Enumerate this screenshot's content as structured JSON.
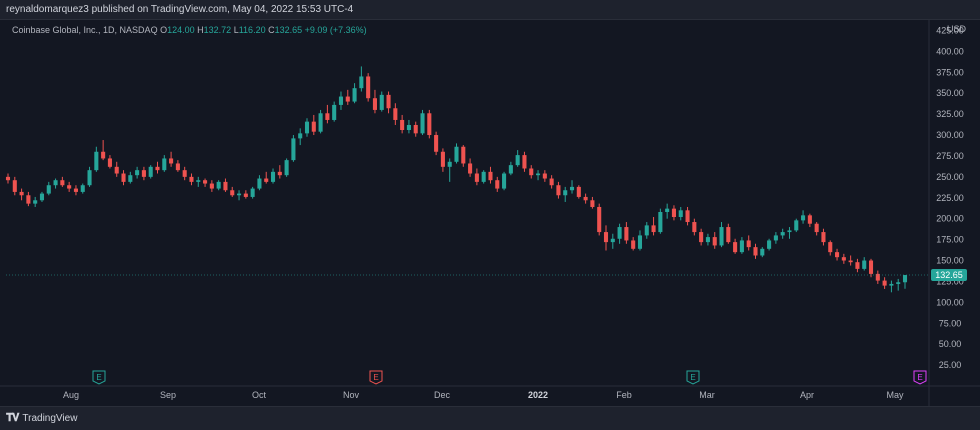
{
  "publish_line": "reynaldomarquez3 published on TradingView.com, May 04, 2022 15:53 UTC-4",
  "legend": {
    "symbol": "Coinbase Global, Inc., 1D, NASDAQ",
    "o_label": "O",
    "o_value": "124.00",
    "h_label": "H",
    "h_value": "132.72",
    "l_label": "L",
    "l_value": "116.20",
    "c_label": "C",
    "c_value": "132.65",
    "change": "+9.09 (+7.36%)"
  },
  "currency": "USD",
  "current_price_label": "132.65",
  "brand": "TradingView",
  "colors": {
    "background": "#131722",
    "up": "#26a69a",
    "down": "#ef5350",
    "earnings_green": "#26a69a",
    "earnings_red": "#ef5350",
    "earnings_purple": "#e040fb",
    "price_tag": "#26a69a"
  },
  "chart_data": {
    "type": "candlestick",
    "ylim": [
      0,
      437.5
    ],
    "yticks": [
      25,
      50,
      75,
      100,
      125,
      150,
      175,
      200,
      225,
      250,
      275,
      300,
      325,
      350,
      375,
      400,
      425
    ],
    "ytick_labels": [
      "25.00",
      "50.00",
      "75.00",
      "100.00",
      "125.00",
      "150.00",
      "175.00",
      "200.00",
      "225.00",
      "250.00",
      "275.00",
      "300.00",
      "325.00",
      "350.00",
      "375.00",
      "400.00",
      "425.00"
    ],
    "xtick_labels": [
      "Aug",
      "Sep",
      "Oct",
      "Nov",
      "Dec",
      "2022",
      "Feb",
      "Mar",
      "Apr",
      "May"
    ],
    "bold_xtick": "2022",
    "earnings_markers": [
      {
        "label": "E",
        "color": "green",
        "at": "Aug 10"
      },
      {
        "label": "E",
        "color": "red",
        "at": "Nov 9"
      },
      {
        "label": "E",
        "color": "green",
        "at": "Feb 24"
      },
      {
        "label": "E",
        "color": "purple",
        "at": "May 10"
      }
    ],
    "candles": [
      [
        250,
        254,
        242,
        246
      ],
      [
        246,
        250,
        228,
        232
      ],
      [
        232,
        236,
        222,
        228
      ],
      [
        228,
        232,
        215,
        218
      ],
      [
        218,
        226,
        214,
        222
      ],
      [
        222,
        232,
        220,
        230
      ],
      [
        230,
        244,
        228,
        240
      ],
      [
        240,
        248,
        236,
        246
      ],
      [
        246,
        250,
        238,
        240
      ],
      [
        240,
        244,
        232,
        236
      ],
      [
        236,
        240,
        228,
        232
      ],
      [
        232,
        242,
        230,
        240
      ],
      [
        240,
        262,
        238,
        258
      ],
      [
        258,
        286,
        256,
        280
      ],
      [
        280,
        294,
        270,
        272
      ],
      [
        272,
        276,
        260,
        262
      ],
      [
        262,
        268,
        250,
        254
      ],
      [
        254,
        258,
        240,
        244
      ],
      [
        244,
        256,
        242,
        252
      ],
      [
        252,
        262,
        248,
        258
      ],
      [
        258,
        262,
        246,
        250
      ],
      [
        250,
        264,
        248,
        262
      ],
      [
        262,
        268,
        254,
        258
      ],
      [
        258,
        276,
        256,
        272
      ],
      [
        272,
        280,
        262,
        266
      ],
      [
        266,
        270,
        256,
        258
      ],
      [
        258,
        262,
        246,
        250
      ],
      [
        250,
        254,
        240,
        244
      ],
      [
        244,
        250,
        238,
        246
      ],
      [
        246,
        248,
        238,
        242
      ],
      [
        242,
        246,
        232,
        236
      ],
      [
        236,
        246,
        234,
        244
      ],
      [
        244,
        248,
        232,
        234
      ],
      [
        234,
        238,
        226,
        228
      ],
      [
        228,
        234,
        222,
        230
      ],
      [
        230,
        234,
        224,
        226
      ],
      [
        226,
        238,
        224,
        236
      ],
      [
        236,
        252,
        234,
        248
      ],
      [
        248,
        256,
        242,
        244
      ],
      [
        244,
        260,
        242,
        256
      ],
      [
        256,
        264,
        248,
        252
      ],
      [
        252,
        272,
        250,
        270
      ],
      [
        270,
        300,
        268,
        296
      ],
      [
        296,
        308,
        288,
        302
      ],
      [
        302,
        320,
        298,
        316
      ],
      [
        316,
        324,
        300,
        304
      ],
      [
        304,
        330,
        302,
        326
      ],
      [
        326,
        336,
        314,
        318
      ],
      [
        318,
        340,
        316,
        336
      ],
      [
        336,
        352,
        330,
        346
      ],
      [
        346,
        354,
        336,
        340
      ],
      [
        340,
        362,
        338,
        356
      ],
      [
        356,
        382,
        352,
        370
      ],
      [
        370,
        374,
        340,
        344
      ],
      [
        344,
        354,
        326,
        330
      ],
      [
        330,
        352,
        328,
        348
      ],
      [
        348,
        352,
        326,
        332
      ],
      [
        332,
        338,
        312,
        318
      ],
      [
        318,
        324,
        302,
        306
      ],
      [
        306,
        318,
        302,
        312
      ],
      [
        312,
        316,
        298,
        302
      ],
      [
        302,
        330,
        300,
        326
      ],
      [
        326,
        330,
        296,
        300
      ],
      [
        300,
        304,
        276,
        280
      ],
      [
        280,
        284,
        256,
        262
      ],
      [
        262,
        272,
        244,
        268
      ],
      [
        268,
        290,
        266,
        286
      ],
      [
        286,
        288,
        262,
        266
      ],
      [
        266,
        272,
        250,
        254
      ],
      [
        254,
        260,
        240,
        244
      ],
      [
        244,
        258,
        242,
        256
      ],
      [
        256,
        262,
        242,
        246
      ],
      [
        246,
        250,
        232,
        236
      ],
      [
        236,
        256,
        234,
        254
      ],
      [
        254,
        268,
        252,
        264
      ],
      [
        264,
        282,
        262,
        276
      ],
      [
        276,
        280,
        256,
        260
      ],
      [
        260,
        264,
        248,
        252
      ],
      [
        252,
        258,
        246,
        254
      ],
      [
        254,
        258,
        244,
        248
      ],
      [
        248,
        252,
        236,
        240
      ],
      [
        240,
        244,
        224,
        228
      ],
      [
        228,
        238,
        220,
        234
      ],
      [
        234,
        246,
        230,
        238
      ],
      [
        238,
        240,
        224,
        226
      ],
      [
        226,
        230,
        218,
        222
      ],
      [
        222,
        226,
        212,
        214
      ],
      [
        214,
        218,
        180,
        184
      ],
      [
        184,
        192,
        162,
        172
      ],
      [
        172,
        182,
        164,
        176
      ],
      [
        176,
        194,
        170,
        190
      ],
      [
        190,
        196,
        170,
        174
      ],
      [
        174,
        178,
        162,
        164
      ],
      [
        164,
        186,
        162,
        180
      ],
      [
        180,
        196,
        176,
        192
      ],
      [
        192,
        202,
        180,
        184
      ],
      [
        184,
        212,
        182,
        208
      ],
      [
        208,
        218,
        200,
        212
      ],
      [
        212,
        216,
        198,
        202
      ],
      [
        202,
        214,
        198,
        210
      ],
      [
        210,
        214,
        192,
        196
      ],
      [
        196,
        200,
        180,
        184
      ],
      [
        184,
        188,
        168,
        172
      ],
      [
        172,
        182,
        168,
        178
      ],
      [
        178,
        184,
        164,
        168
      ],
      [
        168,
        196,
        166,
        190
      ],
      [
        190,
        194,
        170,
        172
      ],
      [
        172,
        176,
        158,
        160
      ],
      [
        160,
        178,
        158,
        174
      ],
      [
        174,
        180,
        162,
        166
      ],
      [
        166,
        170,
        152,
        156
      ],
      [
        156,
        166,
        154,
        164
      ],
      [
        164,
        176,
        162,
        174
      ],
      [
        174,
        184,
        170,
        180
      ],
      [
        180,
        188,
        176,
        184
      ],
      [
        184,
        190,
        176,
        186
      ],
      [
        186,
        200,
        184,
        198
      ],
      [
        198,
        210,
        194,
        204
      ],
      [
        204,
        206,
        190,
        194
      ],
      [
        194,
        196,
        180,
        184
      ],
      [
        184,
        188,
        168,
        172
      ],
      [
        172,
        174,
        156,
        160
      ],
      [
        160,
        164,
        150,
        154
      ],
      [
        154,
        158,
        146,
        150
      ],
      [
        150,
        156,
        144,
        148
      ],
      [
        148,
        152,
        136,
        140
      ],
      [
        140,
        154,
        138,
        150
      ],
      [
        150,
        152,
        130,
        134
      ],
      [
        134,
        138,
        122,
        126
      ],
      [
        126,
        130,
        116,
        120
      ],
      [
        120,
        126,
        112,
        122
      ],
      [
        122,
        128,
        114,
        124
      ],
      [
        124,
        132.72,
        116.2,
        132.65
      ]
    ]
  }
}
